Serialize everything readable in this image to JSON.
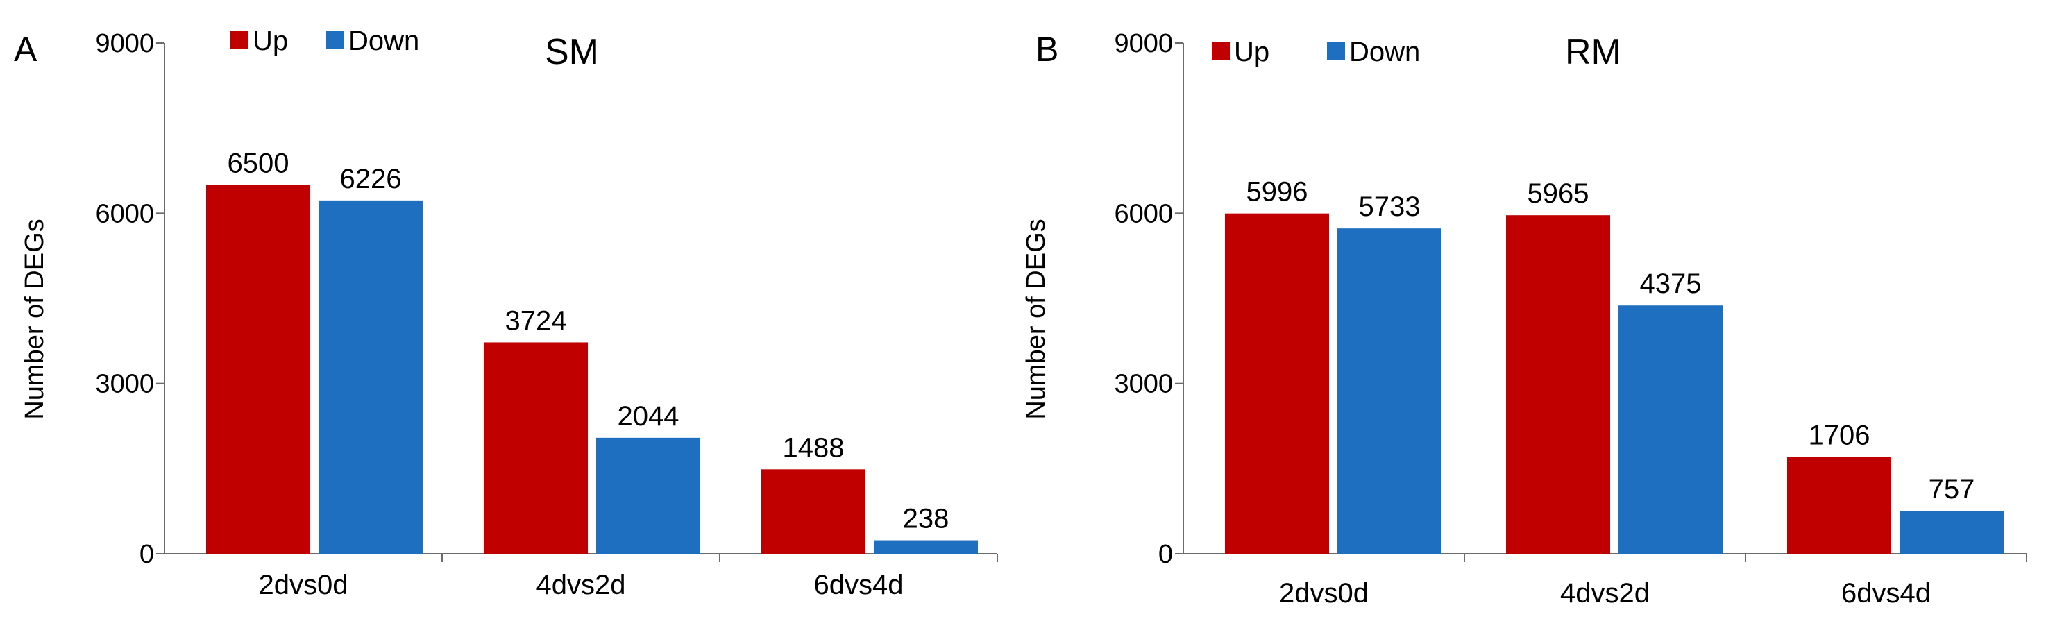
{
  "chart_data": [
    {
      "type": "bar",
      "panel_label": "A",
      "title": "SM",
      "xlabel": "",
      "ylabel": "Number of DEGs",
      "ylim": [
        0,
        9000
      ],
      "yticks": [
        "0",
        "3000",
        "6000",
        "9000"
      ],
      "categories": [
        "2dvs0d",
        "4dvs2d",
        "6dvs4d"
      ],
      "legend_position": "top-left",
      "grid": false,
      "series": [
        {
          "name": "Up",
          "color": "#C00000",
          "values": [
            6500,
            3724,
            1488
          ]
        },
        {
          "name": "Down",
          "color": "#1F6FC0",
          "values": [
            6226,
            2044,
            238
          ]
        }
      ]
    },
    {
      "type": "bar",
      "panel_label": "B",
      "title": "RM",
      "xlabel": "",
      "ylabel": "Number of DEGs",
      "ylim": [
        0,
        9000
      ],
      "yticks": [
        "0",
        "3000",
        "6000",
        "9000"
      ],
      "categories": [
        "2dvs0d",
        "4dvs2d",
        "6dvs4d"
      ],
      "legend_position": "top-left",
      "grid": false,
      "series": [
        {
          "name": "Up",
          "color": "#C00000",
          "values": [
            5996,
            5965,
            1706
          ]
        },
        {
          "name": "Down",
          "color": "#1F6FC0",
          "values": [
            5733,
            4375,
            757
          ]
        }
      ]
    }
  ]
}
